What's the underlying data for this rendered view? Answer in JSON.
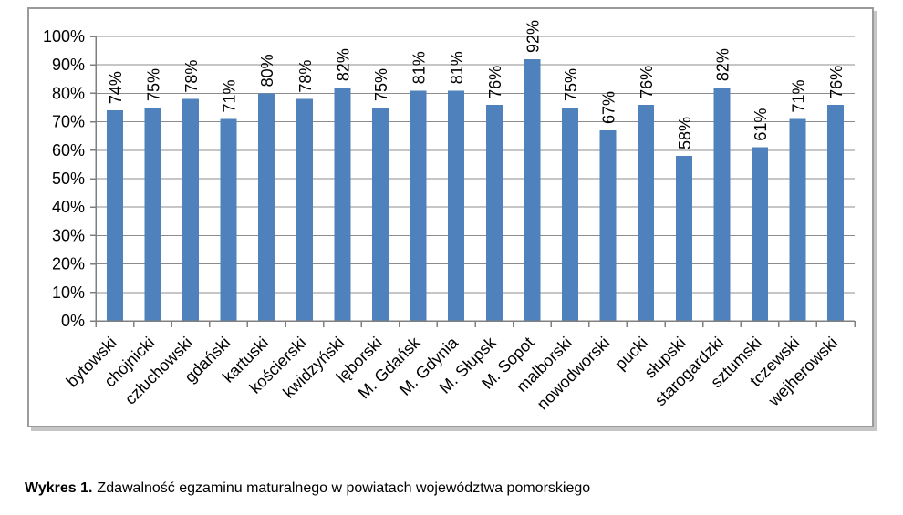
{
  "caption": {
    "label": "Wykres 1.",
    "text": "Zdawalność egzaminu maturalnego w powiatach województwa pomorskiego"
  },
  "chart_data": {
    "type": "bar",
    "title": "",
    "xlabel": "",
    "ylabel": "",
    "categories": [
      "bytowski",
      "chojnicki",
      "człuchowski",
      "gdański",
      "kartuski",
      "kościerski",
      "kwidzyński",
      "lęborski",
      "M. Gdańsk",
      "M. Gdynia",
      "M. Słupsk",
      "M. Sopot",
      "malborski",
      "nowodworski",
      "pucki",
      "słupski",
      "starogardzki",
      "sztumski",
      "tczewski",
      "wejherowski"
    ],
    "values": [
      74,
      75,
      78,
      71,
      80,
      78,
      82,
      75,
      81,
      81,
      76,
      92,
      75,
      67,
      76,
      58,
      82,
      61,
      71,
      76
    ],
    "value_suffix": "%",
    "ylim": [
      0,
      100
    ],
    "ytick_step": 10,
    "ytick_suffix": "%",
    "grid": true,
    "legend": "none",
    "bar_color": "#4F81BD",
    "grid_color": "#8c8c8c",
    "axis_color": "#7f7f7f",
    "label_color": "#000000",
    "value_label_rotation": -90,
    "category_label_rotation": -45
  }
}
